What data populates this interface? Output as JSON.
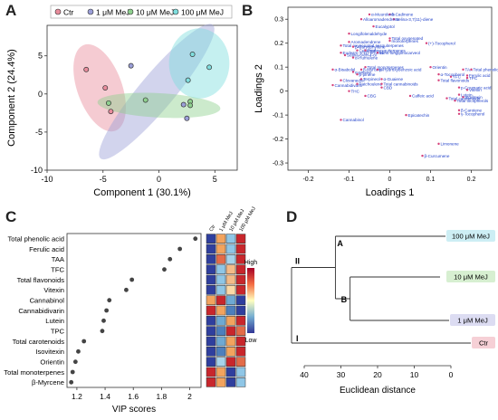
{
  "panel_letters": {
    "a": "A",
    "b": "B",
    "c": "C",
    "d": "D"
  },
  "colors": {
    "ctr": "#e88c9c",
    "mej1": "#9b9fd8",
    "mej10": "#8fd08f",
    "mej100": "#7fdede",
    "text_blue": "#1f3fc9",
    "loading_point": "#d6407a",
    "dot_c": "#444444"
  },
  "chart_data": [
    {
      "type": "scatter",
      "panel": "A",
      "xlabel": "Component 1 (30.1%)",
      "ylabel": "Component 2 (24.4%)",
      "xlim": [
        -10,
        7
      ],
      "ylim": [
        -10,
        9
      ],
      "xticks": [
        -10,
        -5,
        0,
        5
      ],
      "yticks": [
        -10,
        -5,
        0,
        5
      ],
      "legend_position": "top",
      "series": [
        {
          "name": "Ctr",
          "color": "#e88c9c",
          "points": [
            [
              -6.5,
              3.2
            ],
            [
              -4.8,
              0.8
            ],
            [
              -4.3,
              -2.3
            ]
          ],
          "ellipse": {
            "cx": -5.3,
            "cy": 0.8,
            "rx": 2.0,
            "ry": 6.0,
            "rot": -20
          }
        },
        {
          "name": "1 μM MeJ",
          "color": "#9b9fd8",
          "points": [
            [
              -2.5,
              3.7
            ],
            [
              2.2,
              -1.4
            ],
            [
              2.5,
              -3.2
            ]
          ],
          "ellipse": {
            "cx": -0.2,
            "cy": 0.3,
            "rx": 7.8,
            "ry": 2.3,
            "rot": -50
          }
        },
        {
          "name": "10 μM MeJ",
          "color": "#8fd08f",
          "points": [
            [
              -4.5,
              -1.2
            ],
            [
              -1.2,
              -0.8
            ],
            [
              2.8,
              -1.0
            ],
            [
              2.8,
              -1.5
            ]
          ],
          "ellipse": {
            "cx": 0.0,
            "cy": -1.5,
            "rx": 5.5,
            "ry": 1.6,
            "rot": 3
          }
        },
        {
          "name": "100 μM MeJ",
          "color": "#7fdede",
          "points": [
            [
              3.0,
              5.2
            ],
            [
              4.5,
              3.5
            ],
            [
              2.6,
              1.8
            ]
          ],
          "ellipse": {
            "cx": 3.6,
            "cy": 4.0,
            "rx": 2.7,
            "ry": 4.6,
            "rot": 0
          }
        }
      ]
    },
    {
      "type": "scatter",
      "panel": "B",
      "xlabel": "Loadings 1",
      "ylabel": "Loadings 2",
      "xlim": [
        -0.25,
        0.25
      ],
      "ylim": [
        -0.33,
        0.35
      ],
      "xticks": [
        -0.2,
        -0.1,
        0.0,
        0.1,
        0.2
      ],
      "yticks": [
        -0.3,
        -0.2,
        -0.1,
        0.0,
        0.1,
        0.2,
        0.3
      ],
      "points": [
        {
          "label": "δ-Cadinene",
          "x": 0.0,
          "y": 0.32
        },
        {
          "label": "α-Muurolene",
          "x": -0.05,
          "y": 0.32
        },
        {
          "label": "Selina-3,7(11)-diene",
          "x": 0.01,
          "y": 0.3
        },
        {
          "label": "Alloaromadendrene",
          "x": -0.07,
          "y": 0.3
        },
        {
          "label": "Eucalyptol",
          "x": -0.04,
          "y": 0.27
        },
        {
          "label": "Longifolenaldehyde",
          "x": -0.1,
          "y": 0.24
        },
        {
          "label": "Total oxygenated",
          "x": 0.0,
          "y": 0.22
        },
        {
          "label": "monoterpenes",
          "x": 0.0,
          "y": 0.21
        },
        {
          "label": "Aromadendrene",
          "x": -0.1,
          "y": 0.205
        },
        {
          "label": "(+)-Tocopherol",
          "x": 0.09,
          "y": 0.2
        },
        {
          "label": "Total oxygenated sesquiterpenes",
          "x": -0.12,
          "y": 0.19
        },
        {
          "label": "β-Caryophyllene",
          "x": -0.09,
          "y": 0.185
        },
        {
          "label": "Eudesm-7(11)-en-4-ol",
          "x": -0.12,
          "y": 0.16
        },
        {
          "label": "Selina-6-en-4-ol",
          "x": -0.11,
          "y": 0.15
        },
        {
          "label": "Cubenene",
          "x": -0.08,
          "y": 0.17
        },
        {
          "label": "Total sesquiterpenes",
          "x": -0.06,
          "y": 0.17
        },
        {
          "label": "trans-longipinocarveol",
          "x": -0.03,
          "y": 0.16
        },
        {
          "label": "α-Humulene",
          "x": -0.09,
          "y": 0.14
        },
        {
          "label": "Total monoterpenes",
          "x": -0.06,
          "y": 0.1
        },
        {
          "label": "α-Bisabolol",
          "x": -0.14,
          "y": 0.09
        },
        {
          "label": "α-pinene",
          "x": -0.09,
          "y": 0.08
        },
        {
          "label": "β-Myrcene",
          "x": -0.07,
          "y": 0.09
        },
        {
          "label": "p-Hydroxybenzoic acid",
          "x": -0.03,
          "y": 0.09
        },
        {
          "label": "β-pinene",
          "x": -0.08,
          "y": 0.07
        },
        {
          "label": "Terpineol",
          "x": -0.07,
          "y": 0.05
        },
        {
          "label": "α-Guaiene",
          "x": -0.02,
          "y": 0.05
        },
        {
          "label": "Clovanediol",
          "x": -0.12,
          "y": 0.045
        },
        {
          "label": "Cannabidivarin",
          "x": -0.14,
          "y": 0.025
        },
        {
          "label": "Patchoulene",
          "x": -0.08,
          "y": 0.03
        },
        {
          "label": "Total cannabinoids",
          "x": -0.02,
          "y": 0.03
        },
        {
          "label": "CBD",
          "x": -0.02,
          "y": 0.015
        },
        {
          "label": "THC",
          "x": -0.1,
          "y": 0.0
        },
        {
          "label": "CBG",
          "x": -0.06,
          "y": -0.02
        },
        {
          "label": "Caffeic acid",
          "x": 0.05,
          "y": -0.02
        },
        {
          "label": "Cannabinol",
          "x": -0.12,
          "y": -0.12
        },
        {
          "label": "Epicatechin",
          "x": 0.04,
          "y": -0.1
        },
        {
          "label": "Limonene",
          "x": 0.12,
          "y": -0.22
        },
        {
          "label": "β-Curcumene",
          "x": 0.08,
          "y": -0.27
        },
        {
          "label": "Orientin",
          "x": 0.1,
          "y": 0.1
        },
        {
          "label": "TAA",
          "x": 0.18,
          "y": 0.09
        },
        {
          "label": "Total phenolic acids",
          "x": 0.2,
          "y": 0.09
        },
        {
          "label": "α-Tocopherol",
          "x": 0.12,
          "y": 0.07
        },
        {
          "label": "Ferulic acid",
          "x": 0.19,
          "y": 0.065
        },
        {
          "label": "TFC",
          "x": 0.15,
          "y": 0.06
        },
        {
          "label": "TPC",
          "x": 0.19,
          "y": 0.055
        },
        {
          "label": "Total flavonoids",
          "x": 0.12,
          "y": 0.045
        },
        {
          "label": "p-Coumaric acid",
          "x": 0.17,
          "y": 0.015
        },
        {
          "label": "Vitexin",
          "x": 0.19,
          "y": 0.005
        },
        {
          "label": "Lutein",
          "x": 0.17,
          "y": -0.015
        },
        {
          "label": "Isovitexin",
          "x": 0.18,
          "y": -0.025
        },
        {
          "label": "Total carotenoids",
          "x": 0.14,
          "y": -0.03
        },
        {
          "label": "Total tocopherols",
          "x": 0.16,
          "y": -0.04
        },
        {
          "label": "β-Carotene",
          "x": 0.17,
          "y": -0.08
        },
        {
          "label": "γ-Tocopherol",
          "x": 0.17,
          "y": -0.095
        }
      ]
    },
    {
      "type": "scatter",
      "panel": "C",
      "xlabel": "VIP scores",
      "xlim": [
        1.13,
        2.08
      ],
      "xticks": [
        1.2,
        1.4,
        1.6,
        1.8,
        2.0
      ],
      "categories": [
        "Total phenolic acid",
        "Ferulic acid",
        "TAA",
        "TFC",
        "Total flavonoids",
        "Vitexin",
        "Cannabinol",
        "Cannabidivarin",
        "Lutein",
        "TPC",
        "Total carotenoids",
        "Isovitexin",
        "Orientin",
        "Total monoterpenes",
        "β-Myrcene"
      ],
      "values": [
        2.04,
        1.93,
        1.86,
        1.82,
        1.59,
        1.55,
        1.43,
        1.41,
        1.39,
        1.38,
        1.25,
        1.21,
        1.19,
        1.17,
        1.16
      ],
      "heatmap_columns": [
        "Ctr",
        "1 μM MeJ",
        "10 μM MeJ",
        "100 μM MeJ"
      ],
      "heatmap": [
        [
          "#2f3f9e",
          "#f2a35e",
          "#8fc6e6",
          "#c8262c"
        ],
        [
          "#2f3f9e",
          "#f2a35e",
          "#8fc6e6",
          "#c8262c"
        ],
        [
          "#2f3f9e",
          "#e36b49",
          "#a7d3ea",
          "#c8262c"
        ],
        [
          "#2f3f9e",
          "#8fc6e6",
          "#f4bb88",
          "#c8262c"
        ],
        [
          "#2f3f9e",
          "#8fc6e6",
          "#f4bb88",
          "#c8262c"
        ],
        [
          "#2f3f9e",
          "#8fc6e6",
          "#fbd9a6",
          "#c8262c"
        ],
        [
          "#f2a35e",
          "#c8262c",
          "#6ea9d3",
          "#2f3f9e"
        ],
        [
          "#c8262c",
          "#f2a35e",
          "#4d7fbd",
          "#2f3f9e"
        ],
        [
          "#2f3f9e",
          "#6ea9d3",
          "#f2a35e",
          "#c8262c"
        ],
        [
          "#2f3f9e",
          "#4d7fbd",
          "#c8262c",
          "#e36b49"
        ],
        [
          "#2f3f9e",
          "#6ea9d3",
          "#f2a35e",
          "#c8262c"
        ],
        [
          "#2f3f9e",
          "#4d7fbd",
          "#f2a35e",
          "#c8262c"
        ],
        [
          "#2f3f9e",
          "#a7d3ea",
          "#c8262c",
          "#e36b49"
        ],
        [
          "#c8262c",
          "#f2a35e",
          "#2f3f9e",
          "#8fc6e6"
        ],
        [
          "#c8262c",
          "#f2a35e",
          "#2f3f9e",
          "#8fc6e6"
        ]
      ],
      "colorbar": {
        "high": "High",
        "low": "Low"
      }
    },
    {
      "type": "dendrogram",
      "panel": "D",
      "xlabel": "Euclidean distance",
      "xlim": [
        40,
        0
      ],
      "xticks": [
        40,
        30,
        20,
        10,
        0
      ],
      "leaves": [
        {
          "label": "100 μM MeJ",
          "color": "#cdeef4"
        },
        {
          "label": "10 μM MeJ",
          "color": "#d7efd1"
        },
        {
          "label": "1 μM MeJ",
          "color": "#dcdcf2"
        },
        {
          "label": "Ctr",
          "color": "#f6d0d6"
        }
      ],
      "merges": [
        {
          "label": "B",
          "height": 27.5,
          "left": "10 μM MeJ",
          "right": "1 μM MeJ"
        },
        {
          "label": "A",
          "height": 31.5,
          "left": "100 μM MeJ",
          "right": "B"
        },
        {
          "label": "II",
          "height": 42,
          "left": "A",
          "right": "I"
        },
        {
          "label": "I",
          "height": 42,
          "left": "Ctr",
          "right": "Ctr"
        }
      ]
    }
  ]
}
